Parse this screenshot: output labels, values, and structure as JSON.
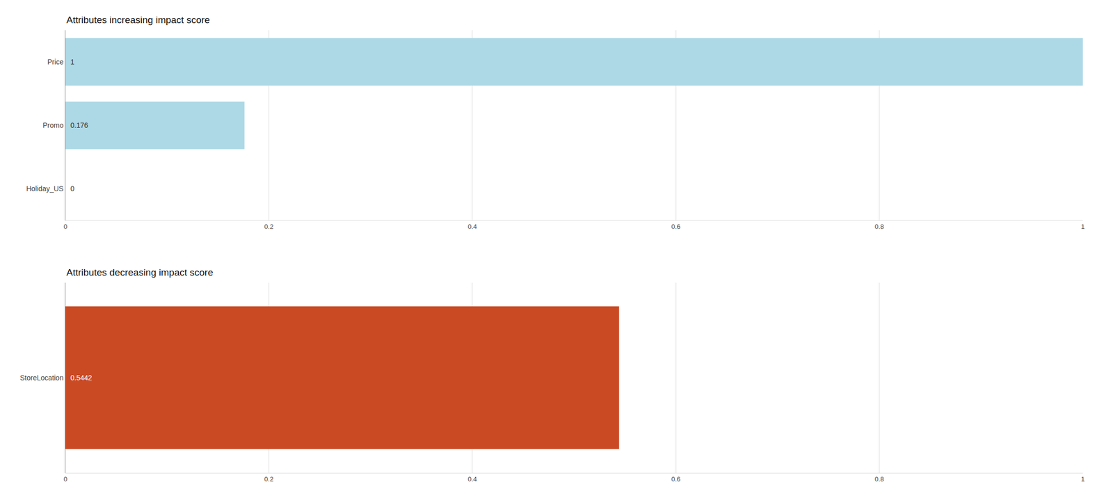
{
  "chart_data": [
    {
      "type": "bar",
      "orientation": "horizontal",
      "title": "Attributes increasing impact score",
      "categories": [
        "Holiday_US",
        "Promo",
        "Price"
      ],
      "values": [
        0,
        0.176,
        1.0
      ],
      "color": "#ADD8E6",
      "xlim": [
        0,
        1.0
      ],
      "xticks": [
        0,
        0.2,
        0.4,
        0.6,
        0.8,
        1.0
      ],
      "grid": true,
      "data_labels": true
    },
    {
      "type": "bar",
      "orientation": "horizontal",
      "title": "Attributes decreasing impact score",
      "categories": [
        "StoreLocation"
      ],
      "values": [
        0.5442
      ],
      "color": "#C94A23",
      "xlim": [
        0,
        1.0
      ],
      "xticks": [
        0,
        0.2,
        0.4,
        0.6,
        0.8,
        1.0
      ],
      "grid": true,
      "data_labels": true
    }
  ]
}
